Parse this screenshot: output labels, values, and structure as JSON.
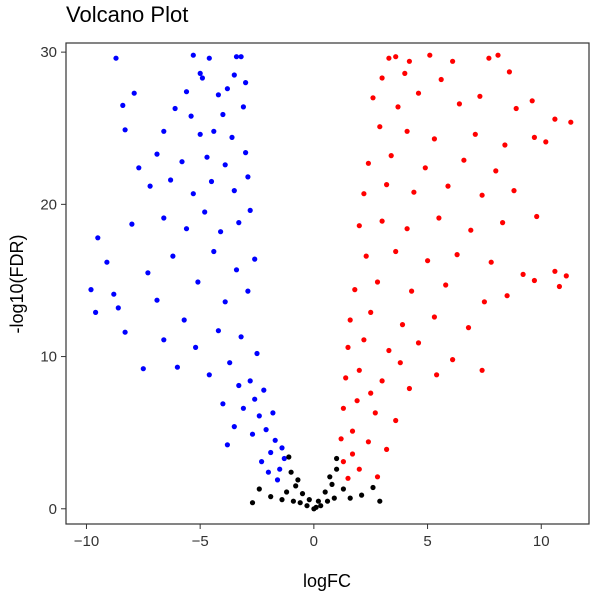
{
  "chart_data": {
    "type": "scatter",
    "title": "Volcano Plot",
    "xlabel": "logFC",
    "ylabel": "-log10(FDR)",
    "xlim": [
      -10.9,
      12.1
    ],
    "ylim": [
      -1.0,
      30.6
    ],
    "x_ticks": [
      -10,
      -5,
      0,
      5,
      10
    ],
    "y_ticks": [
      0,
      10,
      20,
      30
    ],
    "grid": false,
    "legend": "none",
    "colors": {
      "down": "#0000FF",
      "not_significant": "#000000",
      "up": "#FF0000"
    },
    "series": [
      {
        "group": "down",
        "points": [
          [
            -8.7,
            29.6
          ],
          [
            -5.3,
            29.8
          ],
          [
            -4.6,
            29.6
          ],
          [
            -3.4,
            29.7
          ],
          [
            -3.2,
            29.7
          ],
          [
            -5.0,
            28.6
          ],
          [
            -4.9,
            28.3
          ],
          [
            -3.5,
            28.5
          ],
          [
            -3.0,
            28.0
          ],
          [
            -7.9,
            27.3
          ],
          [
            -5.6,
            27.4
          ],
          [
            -4.2,
            27.2
          ],
          [
            -3.8,
            27.6
          ],
          [
            -8.4,
            26.5
          ],
          [
            -6.1,
            26.3
          ],
          [
            -5.4,
            25.8
          ],
          [
            -4.0,
            25.9
          ],
          [
            -3.1,
            26.4
          ],
          [
            -8.3,
            24.9
          ],
          [
            -6.6,
            24.8
          ],
          [
            -5.0,
            24.6
          ],
          [
            -4.4,
            24.8
          ],
          [
            -3.6,
            24.4
          ],
          [
            -7.7,
            22.4
          ],
          [
            -6.9,
            23.3
          ],
          [
            -5.8,
            22.8
          ],
          [
            -4.7,
            23.1
          ],
          [
            -3.9,
            22.6
          ],
          [
            -3.0,
            23.4
          ],
          [
            -7.2,
            21.2
          ],
          [
            -6.3,
            21.6
          ],
          [
            -5.3,
            20.7
          ],
          [
            -4.5,
            21.5
          ],
          [
            -3.5,
            20.9
          ],
          [
            -2.9,
            21.8
          ],
          [
            -9.5,
            17.8
          ],
          [
            -8.0,
            18.7
          ],
          [
            -6.6,
            19.1
          ],
          [
            -5.6,
            18.4
          ],
          [
            -4.8,
            19.5
          ],
          [
            -4.1,
            18.2
          ],
          [
            -3.3,
            18.8
          ],
          [
            -2.8,
            19.6
          ],
          [
            -9.8,
            14.4
          ],
          [
            -9.6,
            12.9
          ],
          [
            -9.1,
            16.2
          ],
          [
            -8.8,
            14.1
          ],
          [
            -8.6,
            13.2
          ],
          [
            -8.3,
            11.6
          ],
          [
            -7.5,
            9.2
          ],
          [
            -7.3,
            15.5
          ],
          [
            -6.9,
            13.7
          ],
          [
            -6.2,
            16.6
          ],
          [
            -5.7,
            12.4
          ],
          [
            -5.1,
            14.9
          ],
          [
            -4.4,
            16.9
          ],
          [
            -3.9,
            13.6
          ],
          [
            -3.4,
            15.7
          ],
          [
            -2.9,
            14.3
          ],
          [
            -2.6,
            16.4
          ],
          [
            -6.6,
            11.1
          ],
          [
            -6.0,
            9.3
          ],
          [
            -5.2,
            10.6
          ],
          [
            -4.6,
            8.8
          ],
          [
            -4.2,
            11.7
          ],
          [
            -3.7,
            9.6
          ],
          [
            -3.2,
            11.3
          ],
          [
            -2.8,
            8.4
          ],
          [
            -2.5,
            10.2
          ],
          [
            -2.2,
            7.8
          ],
          [
            -4.0,
            6.9
          ],
          [
            -3.5,
            5.4
          ],
          [
            -3.1,
            6.6
          ],
          [
            -2.7,
            4.9
          ],
          [
            -2.4,
            6.1
          ],
          [
            -2.1,
            5.2
          ],
          [
            -1.9,
            3.7
          ],
          [
            -1.7,
            4.5
          ],
          [
            -1.5,
            2.6
          ],
          [
            -1.3,
            3.3
          ],
          [
            -3.8,
            4.2
          ],
          [
            -2.3,
            3.1
          ],
          [
            -1.6,
            1.9
          ],
          [
            -2.0,
            2.4
          ],
          [
            -2.6,
            7.2
          ],
          [
            -1.8,
            6.3
          ],
          [
            -3.3,
            8.1
          ],
          [
            -1.4,
            4.0
          ]
        ]
      },
      {
        "group": "not_significant",
        "points": [
          [
            -0.9,
            0.5
          ],
          [
            -0.6,
            0.4
          ],
          [
            -0.3,
            0.2
          ],
          [
            0.0,
            0.0
          ],
          [
            0.3,
            0.2
          ],
          [
            0.6,
            0.5
          ],
          [
            0.9,
            0.7
          ],
          [
            -0.8,
            1.5
          ],
          [
            -0.5,
            1.0
          ],
          [
            -0.2,
            0.6
          ],
          [
            0.2,
            0.5
          ],
          [
            0.5,
            1.1
          ],
          [
            0.8,
            1.6
          ],
          [
            -1.0,
            2.4
          ],
          [
            -0.7,
            1.9
          ],
          [
            0.7,
            2.1
          ],
          [
            1.0,
            2.6
          ],
          [
            -1.1,
            3.4
          ],
          [
            1.0,
            3.3
          ],
          [
            -2.4,
            1.3
          ],
          [
            -1.9,
            0.8
          ],
          [
            -1.4,
            0.6
          ],
          [
            1.6,
            0.7
          ],
          [
            2.1,
            0.9
          ],
          [
            2.6,
            1.4
          ],
          [
            -2.7,
            0.4
          ],
          [
            2.9,
            0.5
          ],
          [
            -1.2,
            1.1
          ],
          [
            1.3,
            1.3
          ],
          [
            0.1,
            0.1
          ]
        ]
      },
      {
        "group": "up",
        "points": [
          [
            3.3,
            29.6
          ],
          [
            3.6,
            29.7
          ],
          [
            4.2,
            29.4
          ],
          [
            5.1,
            29.8
          ],
          [
            6.1,
            29.4
          ],
          [
            7.7,
            29.6
          ],
          [
            8.1,
            29.8
          ],
          [
            3.0,
            28.3
          ],
          [
            4.0,
            28.6
          ],
          [
            5.6,
            28.2
          ],
          [
            8.6,
            28.7
          ],
          [
            9.6,
            26.8
          ],
          [
            2.6,
            27.0
          ],
          [
            3.7,
            26.4
          ],
          [
            4.6,
            27.3
          ],
          [
            6.4,
            26.6
          ],
          [
            7.3,
            27.1
          ],
          [
            8.9,
            26.3
          ],
          [
            10.6,
            25.6
          ],
          [
            11.3,
            25.4
          ],
          [
            10.2,
            24.1
          ],
          [
            2.9,
            25.1
          ],
          [
            4.1,
            24.8
          ],
          [
            5.3,
            24.3
          ],
          [
            7.1,
            24.6
          ],
          [
            8.4,
            23.9
          ],
          [
            9.7,
            24.4
          ],
          [
            2.4,
            22.7
          ],
          [
            3.4,
            23.2
          ],
          [
            4.9,
            22.4
          ],
          [
            6.6,
            22.9
          ],
          [
            8.0,
            22.2
          ],
          [
            2.2,
            20.7
          ],
          [
            3.2,
            21.3
          ],
          [
            4.4,
            20.8
          ],
          [
            5.9,
            21.2
          ],
          [
            7.4,
            20.6
          ],
          [
            8.8,
            20.9
          ],
          [
            9.8,
            19.2
          ],
          [
            2.0,
            18.6
          ],
          [
            3.0,
            18.9
          ],
          [
            4.1,
            18.4
          ],
          [
            5.5,
            19.1
          ],
          [
            6.9,
            18.3
          ],
          [
            8.3,
            18.8
          ],
          [
            2.3,
            16.6
          ],
          [
            3.6,
            16.9
          ],
          [
            5.0,
            16.3
          ],
          [
            6.3,
            16.7
          ],
          [
            7.8,
            16.2
          ],
          [
            9.2,
            15.4
          ],
          [
            9.7,
            15.0
          ],
          [
            10.6,
            15.6
          ],
          [
            11.1,
            15.3
          ],
          [
            10.8,
            14.6
          ],
          [
            1.8,
            14.4
          ],
          [
            2.8,
            14.9
          ],
          [
            4.3,
            14.3
          ],
          [
            5.8,
            14.7
          ],
          [
            7.5,
            13.6
          ],
          [
            8.5,
            14.0
          ],
          [
            1.6,
            12.4
          ],
          [
            2.5,
            12.9
          ],
          [
            3.9,
            12.1
          ],
          [
            5.3,
            12.6
          ],
          [
            6.8,
            11.9
          ],
          [
            1.5,
            10.6
          ],
          [
            2.2,
            11.1
          ],
          [
            3.3,
            10.4
          ],
          [
            4.6,
            10.9
          ],
          [
            6.1,
            9.8
          ],
          [
            7.4,
            9.1
          ],
          [
            1.4,
            8.6
          ],
          [
            2.0,
            9.1
          ],
          [
            3.0,
            8.4
          ],
          [
            4.2,
            7.9
          ],
          [
            5.4,
            8.8
          ],
          [
            1.3,
            6.6
          ],
          [
            1.9,
            7.1
          ],
          [
            2.7,
            6.3
          ],
          [
            3.6,
            5.8
          ],
          [
            1.2,
            4.6
          ],
          [
            1.7,
            5.1
          ],
          [
            2.4,
            4.4
          ],
          [
            3.2,
            3.9
          ],
          [
            1.3,
            3.1
          ],
          [
            2.0,
            2.6
          ],
          [
            2.8,
            2.1
          ],
          [
            1.5,
            2.0
          ],
          [
            2.5,
            7.6
          ],
          [
            3.8,
            9.6
          ],
          [
            1.7,
            3.6
          ]
        ]
      }
    ]
  }
}
